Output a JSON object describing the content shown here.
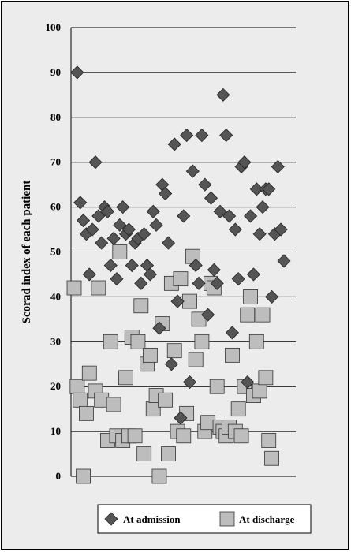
{
  "chart_data": {
    "type": "scatter",
    "ylabel": "Scorad index of each patient",
    "ylim": [
      0,
      100
    ],
    "yticks": [
      0,
      10,
      20,
      30,
      40,
      50,
      60,
      70,
      80,
      90,
      100
    ],
    "grid": true,
    "legend_position": "bottom",
    "series": [
      {
        "name": "At admission",
        "marker": "diamond",
        "color": "#555555",
        "points": [
          [
            1,
            90
          ],
          [
            2,
            61
          ],
          [
            3,
            57
          ],
          [
            4,
            54
          ],
          [
            5,
            45
          ],
          [
            6,
            55
          ],
          [
            7,
            70
          ],
          [
            8,
            58
          ],
          [
            9,
            52
          ],
          [
            10,
            60
          ],
          [
            11,
            59
          ],
          [
            12,
            47
          ],
          [
            13,
            53
          ],
          [
            14,
            44
          ],
          [
            15,
            56
          ],
          [
            16,
            60
          ],
          [
            17,
            54
          ],
          [
            18,
            55
          ],
          [
            19,
            47
          ],
          [
            20,
            52
          ],
          [
            21,
            53
          ],
          [
            22,
            43
          ],
          [
            23,
            54
          ],
          [
            24,
            47
          ],
          [
            25,
            45
          ],
          [
            26,
            59
          ],
          [
            27,
            56
          ],
          [
            28,
            33
          ],
          [
            29,
            65
          ],
          [
            30,
            63
          ],
          [
            31,
            52
          ],
          [
            32,
            25
          ],
          [
            33,
            74
          ],
          [
            34,
            39
          ],
          [
            35,
            13
          ],
          [
            36,
            58
          ],
          [
            37,
            76
          ],
          [
            38,
            21
          ],
          [
            39,
            68
          ],
          [
            40,
            47
          ],
          [
            41,
            43
          ],
          [
            42,
            76
          ],
          [
            43,
            65
          ],
          [
            44,
            36
          ],
          [
            45,
            62
          ],
          [
            46,
            46
          ],
          [
            47,
            43
          ],
          [
            48,
            59
          ],
          [
            49,
            85
          ],
          [
            50,
            76
          ],
          [
            51,
            58
          ],
          [
            52,
            32
          ],
          [
            53,
            55
          ],
          [
            54,
            44
          ],
          [
            55,
            69
          ],
          [
            56,
            70
          ],
          [
            57,
            21
          ],
          [
            58,
            58
          ],
          [
            59,
            45
          ],
          [
            60,
            64
          ],
          [
            61,
            54
          ],
          [
            62,
            60
          ],
          [
            63,
            64
          ],
          [
            64,
            64
          ],
          [
            65,
            40
          ],
          [
            66,
            54
          ],
          [
            67,
            69
          ],
          [
            68,
            55
          ],
          [
            69,
            48
          ]
        ]
      },
      {
        "name": "At discharge",
        "marker": "square",
        "color": "#bdbdbd",
        "points": [
          [
            0,
            42
          ],
          [
            1,
            20
          ],
          [
            2,
            17
          ],
          [
            3,
            0
          ],
          [
            4,
            14
          ],
          [
            5,
            23
          ],
          [
            7,
            19
          ],
          [
            8,
            42
          ],
          [
            9,
            17
          ],
          [
            11,
            8
          ],
          [
            12,
            30
          ],
          [
            13,
            16
          ],
          [
            14,
            9
          ],
          [
            15,
            50
          ],
          [
            16,
            8
          ],
          [
            17,
            22
          ],
          [
            18,
            9
          ],
          [
            19,
            31
          ],
          [
            20,
            9
          ],
          [
            21,
            30
          ],
          [
            22,
            38
          ],
          [
            23,
            5
          ],
          [
            24,
            25
          ],
          [
            25,
            27
          ],
          [
            26,
            15
          ],
          [
            27,
            18
          ],
          [
            28,
            0
          ],
          [
            29,
            34
          ],
          [
            30,
            17
          ],
          [
            31,
            5
          ],
          [
            32,
            43
          ],
          [
            33,
            28
          ],
          [
            34,
            10
          ],
          [
            35,
            44
          ],
          [
            36,
            9
          ],
          [
            37,
            14
          ],
          [
            38,
            39
          ],
          [
            39,
            49
          ],
          [
            40,
            26
          ],
          [
            41,
            35
          ],
          [
            42,
            30
          ],
          [
            43,
            10
          ],
          [
            44,
            12
          ],
          [
            45,
            43
          ],
          [
            46,
            42
          ],
          [
            47,
            20
          ],
          [
            48,
            11
          ],
          [
            49,
            10
          ],
          [
            50,
            9
          ],
          [
            51,
            11
          ],
          [
            52,
            27
          ],
          [
            53,
            10
          ],
          [
            54,
            15
          ],
          [
            55,
            9
          ],
          [
            56,
            20
          ],
          [
            57,
            36
          ],
          [
            58,
            40
          ],
          [
            59,
            18
          ],
          [
            60,
            30
          ],
          [
            61,
            19
          ],
          [
            62,
            36
          ],
          [
            63,
            22
          ],
          [
            64,
            8
          ],
          [
            65,
            4
          ]
        ]
      }
    ]
  }
}
